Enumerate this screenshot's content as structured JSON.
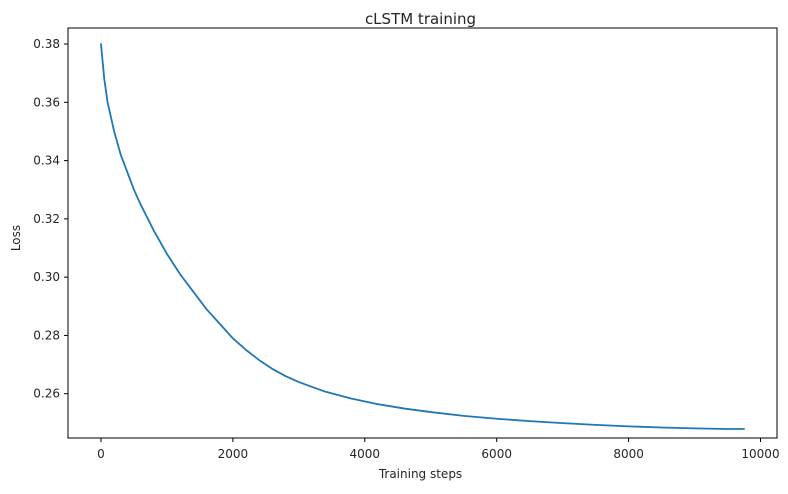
{
  "chart_data": {
    "type": "line",
    "title": "cLSTM training",
    "xlabel": "Training steps",
    "ylabel": "Loss",
    "xlim": [
      -500,
      10250
    ],
    "ylim": [
      0.2448,
      0.3855
    ],
    "xticks": [
      0,
      2000,
      4000,
      6000,
      8000,
      10000
    ],
    "yticks": [
      0.26,
      0.28,
      0.3,
      0.32,
      0.34,
      0.36,
      0.38
    ],
    "xtick_labels": [
      "0",
      "2000",
      "4000",
      "6000",
      "8000",
      "10000"
    ],
    "ytick_labels": [
      "0.26",
      "0.28",
      "0.30",
      "0.32",
      "0.34",
      "0.36",
      "0.38"
    ],
    "grid": false,
    "series": [
      {
        "color": "#1f77b4",
        "x": [
          0,
          25,
          50,
          75,
          100,
          150,
          200,
          300,
          400,
          500,
          600,
          800,
          1000,
          1200,
          1400,
          1600,
          1800,
          2000,
          2200,
          2400,
          2600,
          2800,
          3000,
          3400,
          3800,
          4200,
          4600,
          5000,
          5500,
          6000,
          6500,
          7000,
          7500,
          8000,
          8500,
          9000,
          9500,
          9750
        ],
        "y": [
          0.38,
          0.374,
          0.368,
          0.364,
          0.36,
          0.355,
          0.35,
          0.342,
          0.336,
          0.33,
          0.325,
          0.316,
          0.308,
          0.301,
          0.295,
          0.289,
          0.284,
          0.279,
          0.275,
          0.2715,
          0.2685,
          0.266,
          0.264,
          0.2607,
          0.2583,
          0.2564,
          0.2549,
          0.2537,
          0.2524,
          0.2514,
          0.2506,
          0.2499,
          0.2493,
          0.2488,
          0.2484,
          0.2481,
          0.2479,
          0.2479
        ]
      }
    ]
  }
}
